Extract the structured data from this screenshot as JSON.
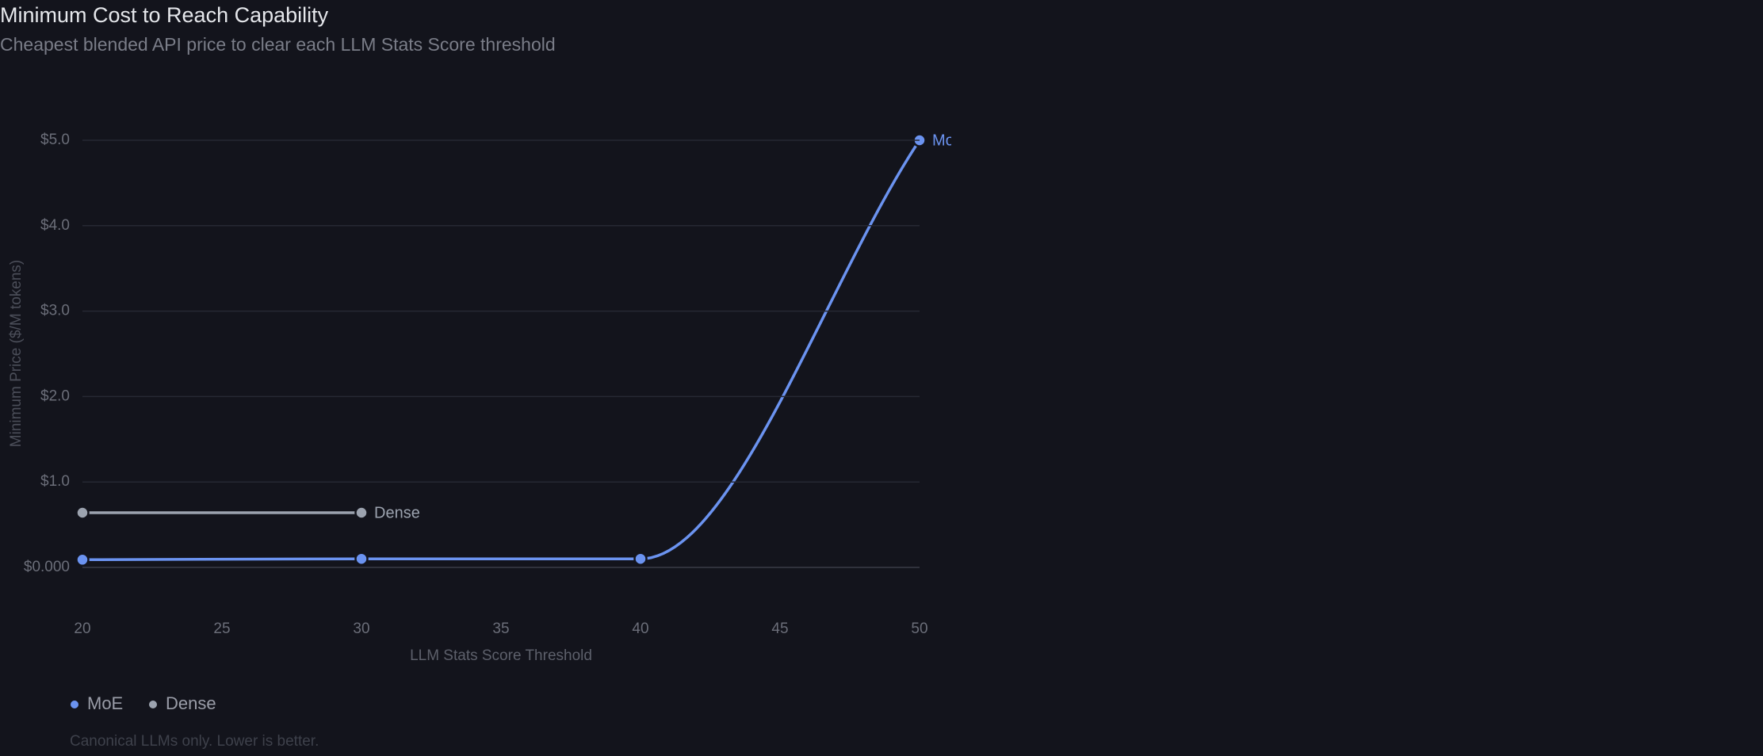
{
  "chart_data": {
    "type": "line",
    "title": "Minimum Cost to Reach Capability",
    "subtitle": "Cheapest blended API price to clear each LLM Stats Score threshold",
    "x_label": "LLM Stats Score Threshold",
    "y_label": "Minimum Price ($/M tokens)",
    "x": [
      20,
      30,
      40,
      50
    ],
    "series": [
      {
        "name": "MoE",
        "color": "#6b93f0",
        "values": [
          0.09,
          0.1,
          0.1,
          5.0
        ]
      },
      {
        "name": "Dense",
        "color": "#9ca3af",
        "values": [
          0.64,
          0.64,
          null,
          null
        ]
      }
    ],
    "xlim": [
      20,
      50
    ],
    "xticks": [
      20,
      25,
      30,
      35,
      40,
      45,
      50
    ],
    "ylim": [
      0,
      5
    ],
    "yticks": [
      {
        "value": 0,
        "label": "$0.000"
      },
      {
        "value": 1,
        "label": "$1.0"
      },
      {
        "value": 2,
        "label": "$2.0"
      },
      {
        "value": 3,
        "label": "$3.0"
      },
      {
        "value": 4,
        "label": "$4.0"
      },
      {
        "value": 5,
        "label": "$5.0"
      }
    ],
    "grid": true,
    "legend_position": "bottom-left",
    "note": "Canonical LLMs only. Lower is better."
  }
}
